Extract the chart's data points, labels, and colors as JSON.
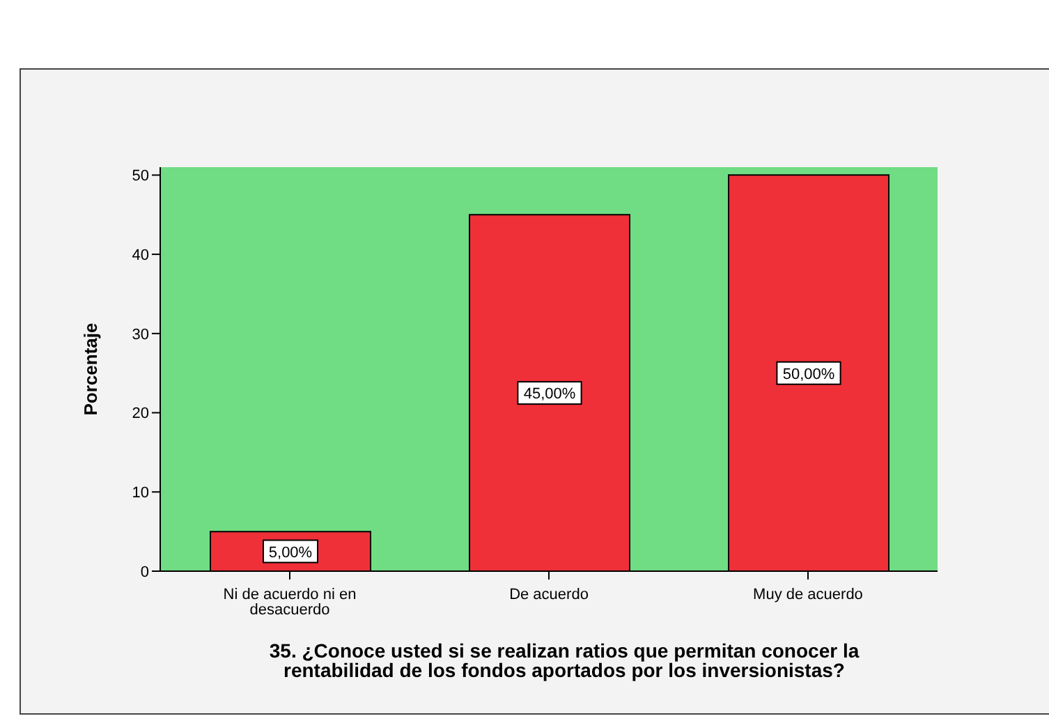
{
  "chart_data": {
    "type": "bar",
    "xlabel": "35. ¿Conoce usted si se realizan ratios que permitan conocer la rentabilidad de los fondos aportados por los inversionistas?",
    "ylabel": "Porcentaje",
    "categories": [
      "Ni de acuerdo ni en desacuerdo",
      "De acuerdo",
      "Muy de acuerdo"
    ],
    "values": [
      5,
      45,
      50
    ],
    "value_labels": [
      "5,00%",
      "45,00%",
      "50,00%"
    ],
    "color": "#ef3038",
    "ylim": [
      0,
      51
    ],
    "yticks": [
      0,
      10,
      20,
      30,
      40,
      50
    ],
    "grid": false
  }
}
